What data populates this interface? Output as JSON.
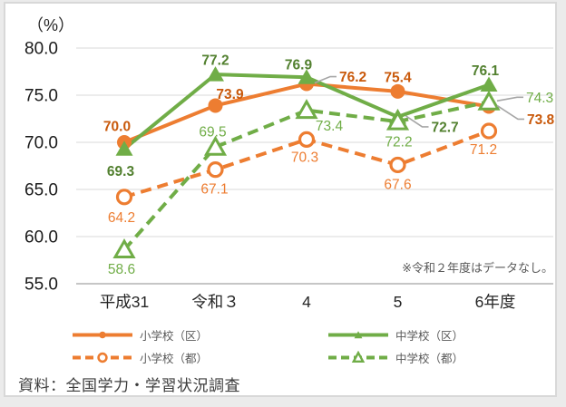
{
  "figure": {
    "unit_label": "（%）",
    "note": "※令和２年度はデータなし。",
    "source": "資料：全国学力・学習状況調査"
  },
  "chart_data": {
    "type": "line",
    "title": "",
    "unit_label": "（%）",
    "categories": [
      "平成31",
      "令和３",
      "4",
      "5",
      "6年度"
    ],
    "xlabel": "",
    "ylabel": "（%）",
    "ylim": [
      55,
      80
    ],
    "ytick_values": [
      80,
      75,
      70,
      65,
      60,
      55
    ],
    "ytick_labels": [
      "80.0",
      "75.0",
      "70.0",
      "65.0",
      "60.0",
      "55.0"
    ],
    "grid": true,
    "legend_position": "bottom",
    "note": "※令和２年度はデータなし。",
    "source": "資料：全国学力・学習状況調査",
    "colors": {
      "orange": "#ED7D31",
      "green": "#70AD47",
      "leader_gray": "#A6A6A6",
      "gridline": "#D9D9D9",
      "axis_line": "#B3B3B3"
    },
    "series": [
      {
        "name": "小学校（区）",
        "color": "#ED7D31",
        "label_color": "#C9590B",
        "line": "solid",
        "marker": "circle-filled",
        "label_weight": "bold",
        "values": [
          70.0,
          73.9,
          76.2,
          75.4,
          73.8
        ],
        "label_offsets": [
          [
            -8,
            -18
          ],
          [
            16,
            -13
          ],
          [
            46,
            -8,
            "leader"
          ],
          [
            0,
            -16
          ],
          [
            52,
            14,
            "leader"
          ]
        ]
      },
      {
        "name": "小学校（都）",
        "color": "#ED7D31",
        "label_color": "#ED7D31",
        "line": "dashed",
        "marker": "circle-open",
        "label_weight": "normal",
        "values": [
          64.2,
          67.1,
          70.3,
          67.6,
          71.2
        ],
        "label_offsets": [
          [
            -3,
            22
          ],
          [
            -1,
            21
          ],
          [
            -2,
            19
          ],
          [
            0,
            21
          ],
          [
            -6,
            20
          ]
        ]
      },
      {
        "name": "中学校（区）",
        "color": "#70AD47",
        "label_color": "#52802F",
        "line": "solid",
        "marker": "triangle-filled",
        "label_weight": "bold",
        "values": [
          69.3,
          77.2,
          76.9,
          72.7,
          76.1
        ],
        "label_offsets": [
          [
            -4,
            24
          ],
          [
            0,
            -16
          ],
          [
            -9,
            -14
          ],
          [
            47,
            11,
            "leader"
          ],
          [
            -4,
            -16
          ]
        ]
      },
      {
        "name": "中学校（都）",
        "color": "#70AD47",
        "label_color": "#70AD47",
        "line": "dashed",
        "marker": "triangle-open",
        "label_weight": "normal",
        "values": [
          58.6,
          69.5,
          73.4,
          72.2,
          74.3
        ],
        "label_offsets": [
          [
            -3,
            21
          ],
          [
            -3,
            -17
          ],
          [
            25,
            17
          ],
          [
            1,
            22
          ],
          [
            51,
            -5,
            "leader"
          ]
        ]
      }
    ]
  }
}
